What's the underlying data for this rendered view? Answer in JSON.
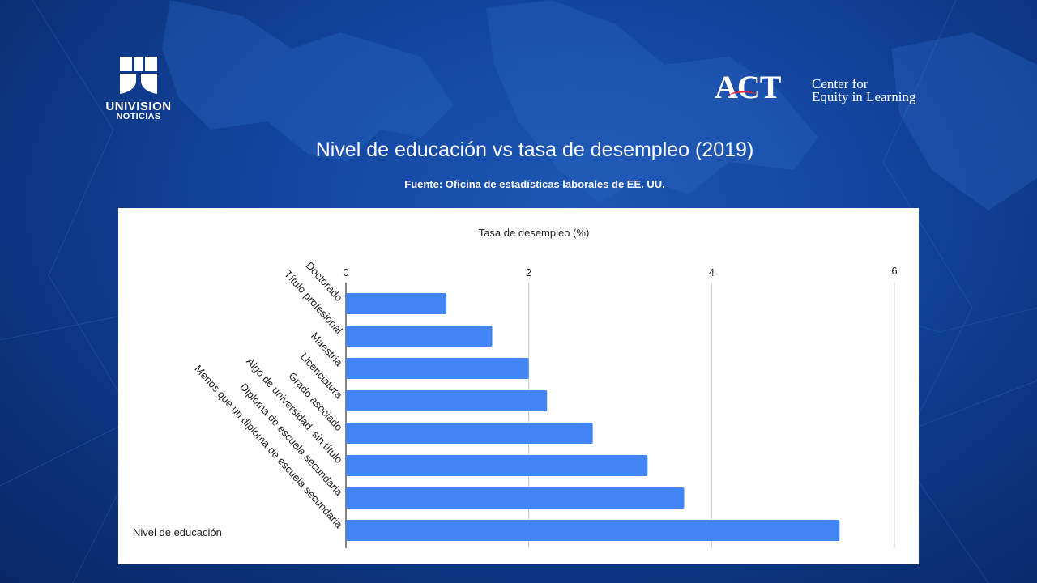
{
  "logos": {
    "left": {
      "word": "UNIVISION",
      "sub": "NOTICIAS"
    },
    "right": {
      "word": "ACT",
      "line1": "Center for",
      "line2": "Equity in Learning"
    }
  },
  "header": {
    "title": "Nivel de educación vs tasa de desempleo (2019)",
    "source": "Fuente: Oficina de estadísticas laborales de EE. UU."
  },
  "colors": {
    "bar": "#4285f4",
    "grid": "#cccccc",
    "axis": "#333333"
  },
  "chart_data": {
    "type": "bar",
    "orientation": "horizontal",
    "title": "Tasa de desempleo (%)",
    "xlabel": "Tasa de desempleo (%)",
    "ylabel": "Nivel de educación",
    "categories": [
      "Doctorado",
      "Título profesional",
      "Maestría",
      "Licenciatura",
      "Grado asociado",
      "Algo de universidad, sin título",
      "Diploma de escuela secundaria",
      "Menos que un diploma de escuela secundaria"
    ],
    "values": [
      1.1,
      1.6,
      2.0,
      2.2,
      2.7,
      3.3,
      3.7,
      5.4
    ],
    "xlim": [
      0,
      6
    ],
    "ticks": [
      0,
      2,
      4,
      6
    ],
    "grid": true,
    "legend": "none"
  }
}
